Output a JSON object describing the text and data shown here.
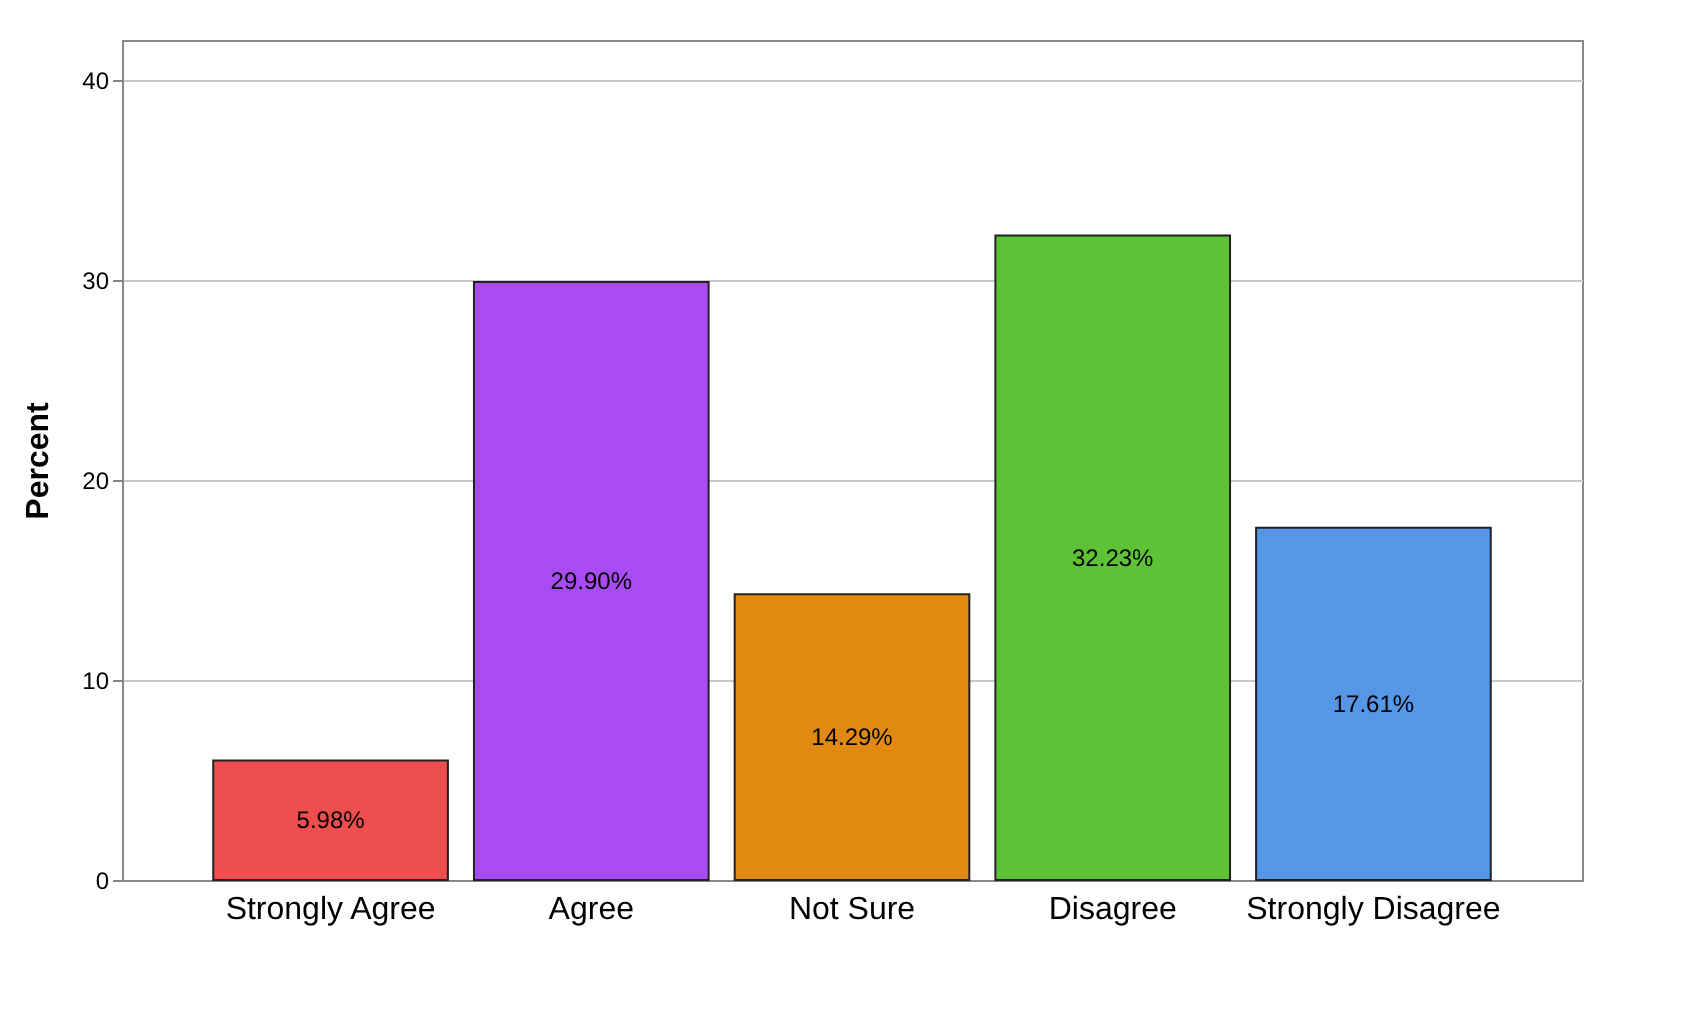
{
  "chart_data": {
    "type": "bar",
    "ylabel": "Percent",
    "categories": [
      "Strongly Agree",
      "Agree",
      "Not Sure",
      "Disagree",
      "Strongly Disagree"
    ],
    "values": [
      5.98,
      29.9,
      14.29,
      32.23,
      17.61
    ],
    "colors": [
      "#ef4e4e",
      "#a94bf2",
      "#e08a12",
      "#5dc236",
      "#5596e6"
    ],
    "value_labels": [
      "5.98%",
      "29.90%",
      "14.29%",
      "32.23%",
      "17.61%"
    ],
    "ylim": [
      0,
      42
    ],
    "yticks": [
      0,
      10,
      20,
      30,
      40
    ],
    "grid": "y",
    "legend": false
  }
}
